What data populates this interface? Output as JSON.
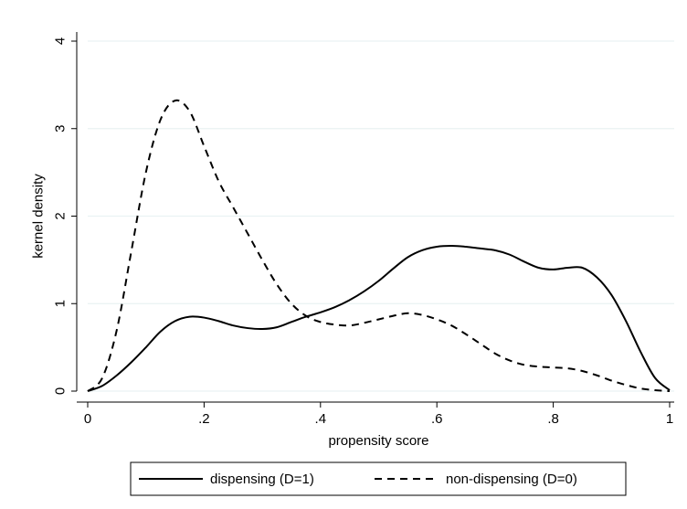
{
  "chart_data": {
    "type": "line",
    "title": "",
    "xlabel": "propensity score",
    "ylabel": "kernel density",
    "xlim": [
      0,
      1
    ],
    "ylim": [
      0,
      4
    ],
    "grid": "horizontal",
    "legend_position": "bottom",
    "x_ticks": [
      0,
      0.2,
      0.4,
      0.6,
      0.8,
      1
    ],
    "x_tick_labels": [
      "0",
      ".2",
      ".4",
      ".6",
      ".8",
      "1"
    ],
    "y_ticks": [
      0,
      1,
      2,
      3,
      4
    ],
    "y_tick_labels": [
      "0",
      "1",
      "2",
      "3",
      "4"
    ],
    "series": [
      {
        "name": "dispensing (D=1)",
        "style": "solid",
        "color": "#000000",
        "x": [
          0.0,
          0.025,
          0.05,
          0.075,
          0.1,
          0.125,
          0.15,
          0.175,
          0.2,
          0.225,
          0.25,
          0.275,
          0.3,
          0.325,
          0.35,
          0.375,
          0.4,
          0.425,
          0.45,
          0.475,
          0.5,
          0.525,
          0.55,
          0.575,
          0.6,
          0.625,
          0.65,
          0.675,
          0.7,
          0.725,
          0.75,
          0.775,
          0.8,
          0.825,
          0.85,
          0.875,
          0.9,
          0.925,
          0.95,
          0.975,
          1.0
        ],
        "y": [
          0.0,
          0.06,
          0.18,
          0.33,
          0.5,
          0.68,
          0.8,
          0.85,
          0.84,
          0.8,
          0.75,
          0.72,
          0.71,
          0.73,
          0.79,
          0.85,
          0.9,
          0.96,
          1.04,
          1.14,
          1.26,
          1.4,
          1.53,
          1.61,
          1.65,
          1.66,
          1.65,
          1.63,
          1.61,
          1.56,
          1.48,
          1.41,
          1.39,
          1.41,
          1.41,
          1.3,
          1.1,
          0.8,
          0.45,
          0.15,
          0.01
        ]
      },
      {
        "name": "non-dispensing (D=0)",
        "style": "dashed",
        "color": "#000000",
        "x": [
          0.0,
          0.025,
          0.05,
          0.075,
          0.1,
          0.125,
          0.15,
          0.175,
          0.2,
          0.225,
          0.25,
          0.275,
          0.3,
          0.325,
          0.35,
          0.375,
          0.4,
          0.425,
          0.45,
          0.475,
          0.5,
          0.525,
          0.55,
          0.575,
          0.6,
          0.625,
          0.65,
          0.675,
          0.7,
          0.725,
          0.75,
          0.775,
          0.8,
          0.825,
          0.85,
          0.875,
          0.9,
          0.925,
          0.95,
          0.975,
          1.0
        ],
        "y": [
          0.0,
          0.15,
          0.7,
          1.6,
          2.5,
          3.1,
          3.32,
          3.2,
          2.8,
          2.4,
          2.1,
          1.8,
          1.5,
          1.22,
          1.0,
          0.86,
          0.79,
          0.76,
          0.75,
          0.78,
          0.82,
          0.86,
          0.89,
          0.87,
          0.82,
          0.75,
          0.65,
          0.54,
          0.43,
          0.35,
          0.3,
          0.28,
          0.27,
          0.26,
          0.23,
          0.18,
          0.12,
          0.07,
          0.03,
          0.01,
          0.0
        ]
      }
    ]
  }
}
